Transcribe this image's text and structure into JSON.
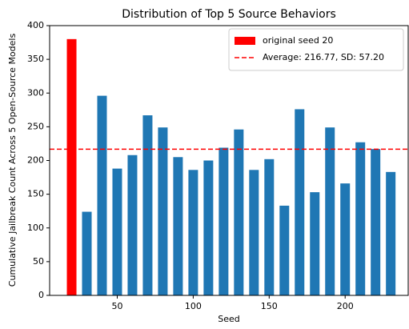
{
  "chart_data": {
    "type": "bar",
    "title": "Distribution of Top 5 Source Behaviors",
    "xlabel": "Seed",
    "ylabel": "Cumulative Jailbreak Count Across 5 Open-Source Models",
    "series": [
      {
        "name": "original seed 20",
        "color": "#ff0000",
        "x": [
          20
        ],
        "values": [
          380
        ]
      },
      {
        "color": "#1f77b4",
        "x": [
          30,
          40,
          50,
          60,
          70,
          80,
          90,
          100,
          110,
          120,
          130,
          140,
          150,
          160,
          170,
          180,
          190,
          200,
          210,
          220,
          230
        ],
        "values": [
          124,
          296,
          188,
          208,
          267,
          249,
          205,
          186,
          200,
          219,
          246,
          186,
          202,
          133,
          276,
          153,
          249,
          166,
          227,
          217,
          183
        ]
      }
    ],
    "hline": {
      "value": 216.77,
      "label": "Average: 216.77, SD: 57.20",
      "color": "#ff0000"
    },
    "xlim": [
      5.5,
      241.5
    ],
    "xticks": [
      50,
      100,
      150,
      200
    ],
    "ylim": [
      0,
      400
    ],
    "yticks": [
      0,
      50,
      100,
      150,
      200,
      250,
      300,
      350,
      400
    ],
    "legend": "upper right"
  }
}
